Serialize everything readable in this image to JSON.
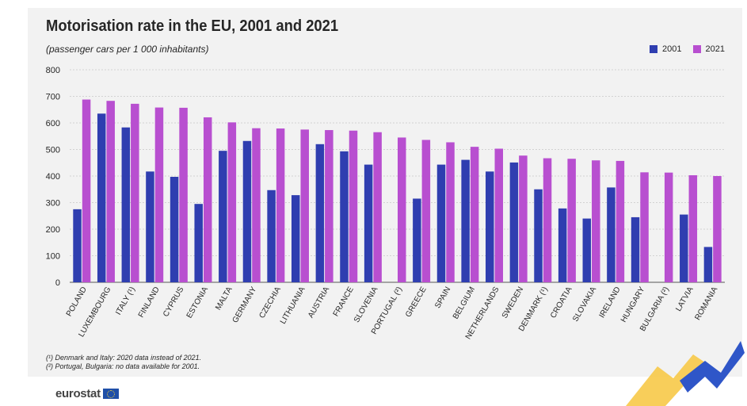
{
  "chart_data": {
    "type": "bar",
    "title": "Motorisation rate in the EU, 2001 and 2021",
    "subtitle": "(passenger cars per 1 000 inhabitants)",
    "ylim": [
      0,
      800
    ],
    "yticks": [
      "0",
      "100",
      "200",
      "300",
      "400",
      "500",
      "600",
      "700",
      "800"
    ],
    "grid": true,
    "legend_position": "top-right",
    "categories": [
      "POLAND",
      "LUXEMBOURG",
      "ITALY (¹)",
      "FINLAND",
      "CYPRUS",
      "ESTONIA",
      "MALTA",
      "GERMANY",
      "CZECHIA",
      "LITHUANIA",
      "AUSTRIA",
      "FRANCE",
      "SLOVENIA",
      "PORTUGAL (²)",
      "GREECE",
      "SPAIN",
      "BELGIUM",
      "NETHERLANDS",
      "SWEDEN",
      "DENMARK (¹)",
      "CROATIA",
      "SLOVAKIA",
      "IRELAND",
      "HUNGARY",
      "BULGARIA (²)",
      "LATVIA",
      "ROMANIA"
    ],
    "series": [
      {
        "name": "2001",
        "color": "#2f3eb0",
        "values": [
          275,
          635,
          583,
          417,
          397,
          295,
          495,
          532,
          347,
          328,
          520,
          493,
          443,
          null,
          315,
          443,
          461,
          417,
          451,
          350,
          278,
          240,
          357,
          245,
          null,
          255,
          133
        ]
      },
      {
        "name": "2021",
        "color": "#b84fd0",
        "values": [
          688,
          683,
          672,
          658,
          657,
          621,
          602,
          580,
          579,
          575,
          573,
          571,
          565,
          545,
          536,
          527,
          510,
          503,
          477,
          467,
          465,
          459,
          457,
          414,
          413,
          403,
          400
        ]
      }
    ]
  },
  "footnotes": [
    "(¹) Denmark and Italy: 2020 data instead of 2021.",
    "(²) Portugal, Bulgaria: no data available for 2001."
  ],
  "logo": {
    "text": "eurostat",
    "icon": "eu-flag-icon"
  }
}
